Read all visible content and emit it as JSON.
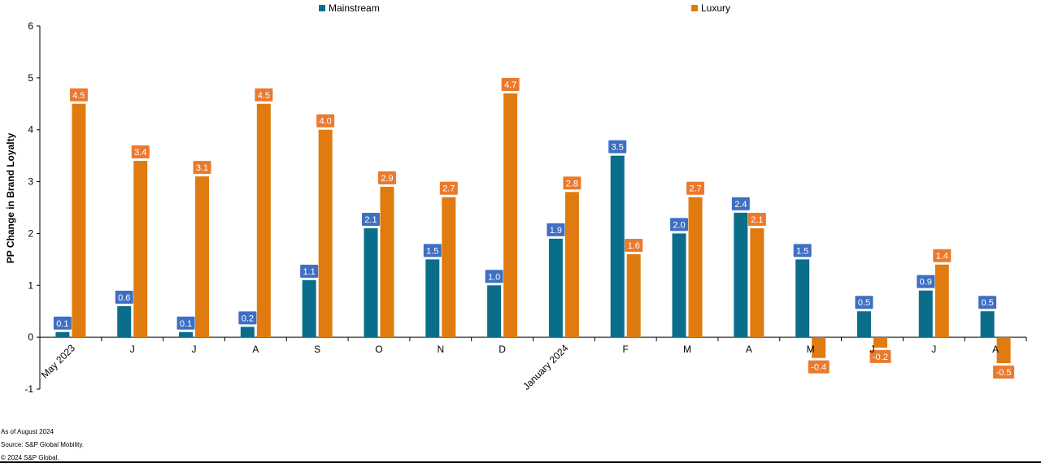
{
  "chart_data": {
    "type": "bar",
    "ylabel": "PP Change in Brand Loyalty",
    "ylim": [
      -1,
      6
    ],
    "yticks": [
      "-1",
      "0",
      "1",
      "2",
      "3",
      "4",
      "5",
      "6"
    ],
    "categories": [
      "May 2023",
      "J",
      "J",
      "A",
      "S",
      "O",
      "N",
      "D",
      "January 2024",
      "F",
      "M",
      "A",
      "M",
      "J",
      "J",
      "A"
    ],
    "legend_position": "top",
    "grid": false,
    "series": [
      {
        "name": "Mainstream",
        "color": "#0a6e8a",
        "label_color": "#3f6fc4",
        "values": [
          0.1,
          0.6,
          0.1,
          0.2,
          1.1,
          2.1,
          1.5,
          1.0,
          1.9,
          3.5,
          2.0,
          2.4,
          1.5,
          0.5,
          0.9,
          0.5
        ],
        "labels": [
          "0.1",
          "0.6",
          "0.1",
          "0.2",
          "1.1",
          "2.1",
          "1.5",
          "1.0",
          "1.9",
          "3.5",
          "2.0",
          "2.4",
          "1.5",
          "0.5",
          "0.9",
          "0.5"
        ]
      },
      {
        "name": "Luxury",
        "color": "#e07b10",
        "label_color": "#ea7a2e",
        "values": [
          4.5,
          3.4,
          3.1,
          4.5,
          4.0,
          2.9,
          2.7,
          4.7,
          2.8,
          1.6,
          2.7,
          2.1,
          -0.4,
          -0.2,
          1.4,
          -0.5
        ],
        "labels": [
          "4.5",
          "3.4",
          "3.1",
          "4.5",
          "4.0",
          "2.9",
          "2.7",
          "4.7",
          "2.8",
          "1.6",
          "2.7",
          "2.1",
          "-0.4",
          "-0.2",
          "1.4",
          "-0.5"
        ]
      }
    ]
  },
  "footer": {
    "line1": "As of August 2024",
    "line2": "Source: S&P Global Mobility.",
    "line3": "© 2024 S&P Global."
  }
}
